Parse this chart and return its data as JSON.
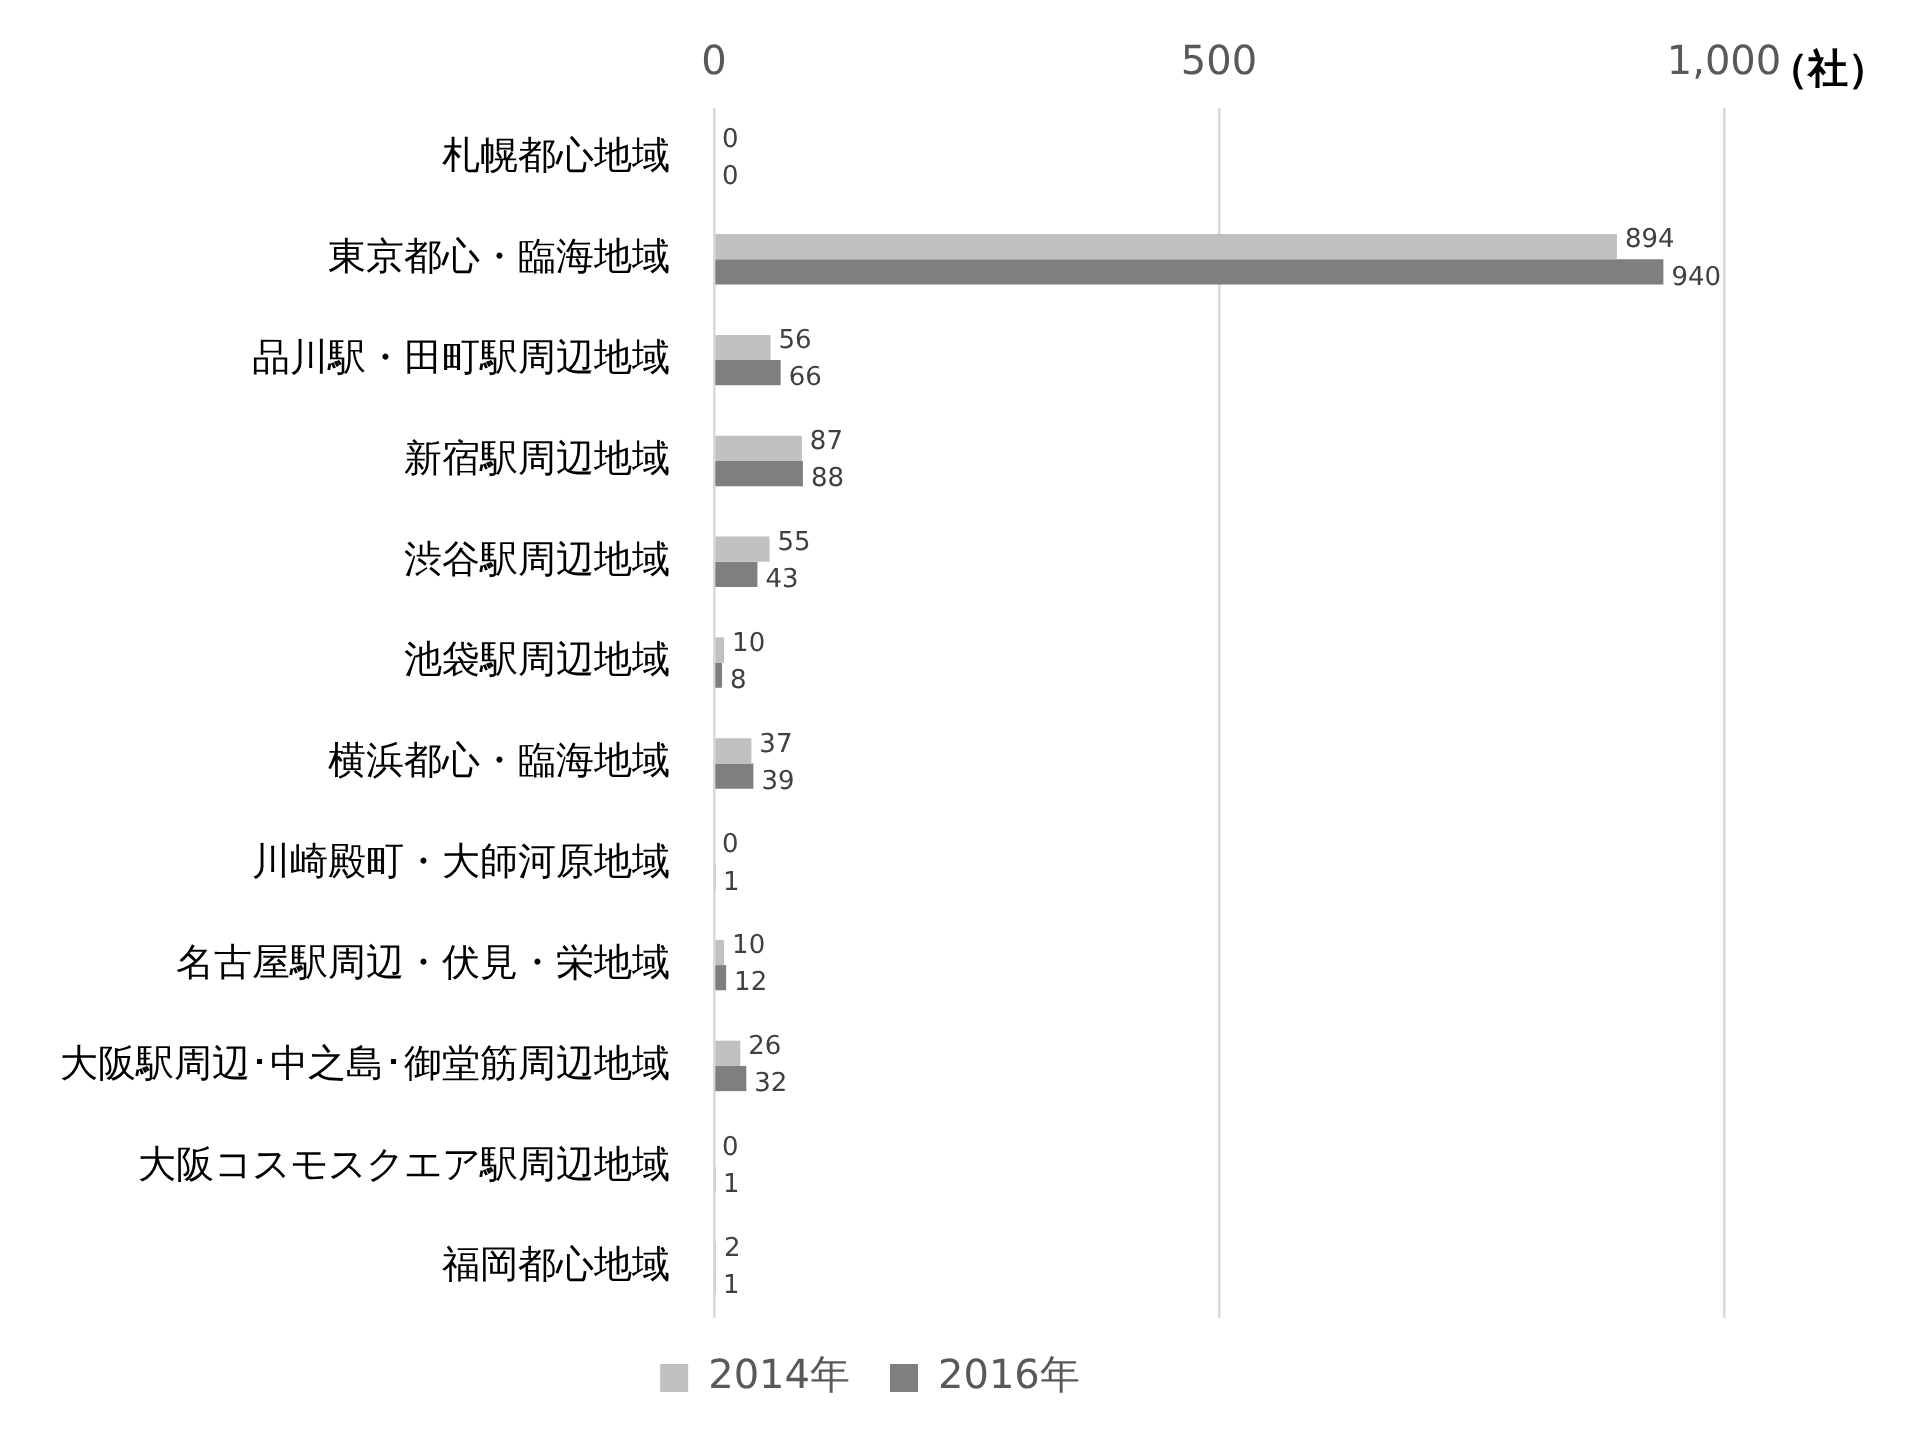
{
  "chart_data": {
    "type": "bar",
    "orientation": "horizontal",
    "xlabel": "（社）",
    "categories": [
      "札幌都心地域",
      "東京都心・臨海地域",
      "品川駅・田町駅周辺地域",
      "新宿駅周辺地域",
      "渋谷駅周辺地域",
      "池袋駅周辺地域",
      "横浜都心・臨海地域",
      "川崎殿町・大師河原地域",
      "名古屋駅周辺・伏見・栄地域",
      "大阪駅周辺･中之島･御堂筋周辺地域",
      "大阪コスモスクエア駅周辺地域",
      "福岡都心地域"
    ],
    "series": [
      {
        "name": "2014年",
        "color": "#c0c0c0",
        "values": [
          0,
          894,
          56,
          87,
          55,
          10,
          37,
          0,
          10,
          26,
          0,
          2
        ]
      },
      {
        "name": "2016年",
        "color": "#7f7f7f",
        "values": [
          0,
          940,
          66,
          88,
          43,
          8,
          39,
          1,
          12,
          32,
          1,
          1
        ]
      }
    ],
    "xlim": [
      0,
      1000
    ],
    "xticks": [
      0,
      500,
      {
        "value": 1000,
        "label": "1,000"
      }
    ],
    "grid": "x",
    "legend": "bottom",
    "data_labels": true
  }
}
